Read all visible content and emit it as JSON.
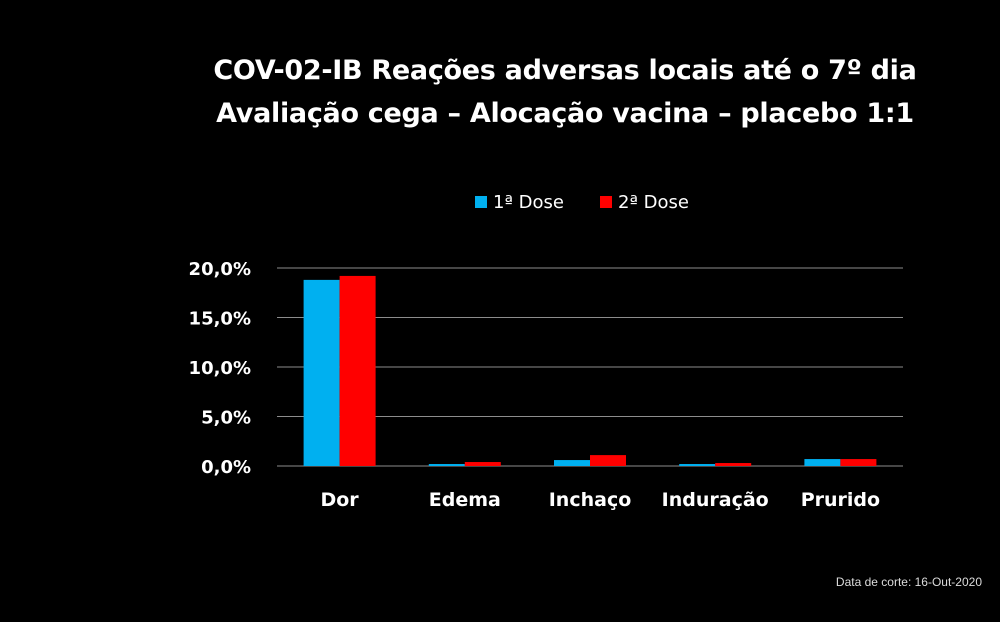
{
  "slide": {
    "title_line1": "COV-02-IB Reações adversas locais até o 7º dia",
    "title_line2": "Avaliação cega – Alocação vacina – placebo 1:1",
    "footnote": "Data de corte: 16-Out-2020"
  },
  "chart_data": {
    "type": "bar",
    "categories": [
      "Dor",
      "Edema",
      "Inchaço",
      "Induração",
      "Prurido"
    ],
    "series": [
      {
        "name": "1ª Dose",
        "color": "#00b0f0",
        "values": [
          18.8,
          0.2,
          0.6,
          0.2,
          0.7
        ]
      },
      {
        "name": "2ª Dose",
        "color": "#ff0000",
        "values": [
          19.2,
          0.4,
          1.1,
          0.3,
          0.7
        ]
      }
    ],
    "ylim": [
      0,
      20
    ],
    "yticks": [
      "0,0%",
      "5,0%",
      "10,0%",
      "15,0%",
      "20,0%"
    ],
    "ytick_values": [
      0,
      5,
      10,
      15,
      20
    ],
    "grid": true,
    "legend": "top-center"
  }
}
